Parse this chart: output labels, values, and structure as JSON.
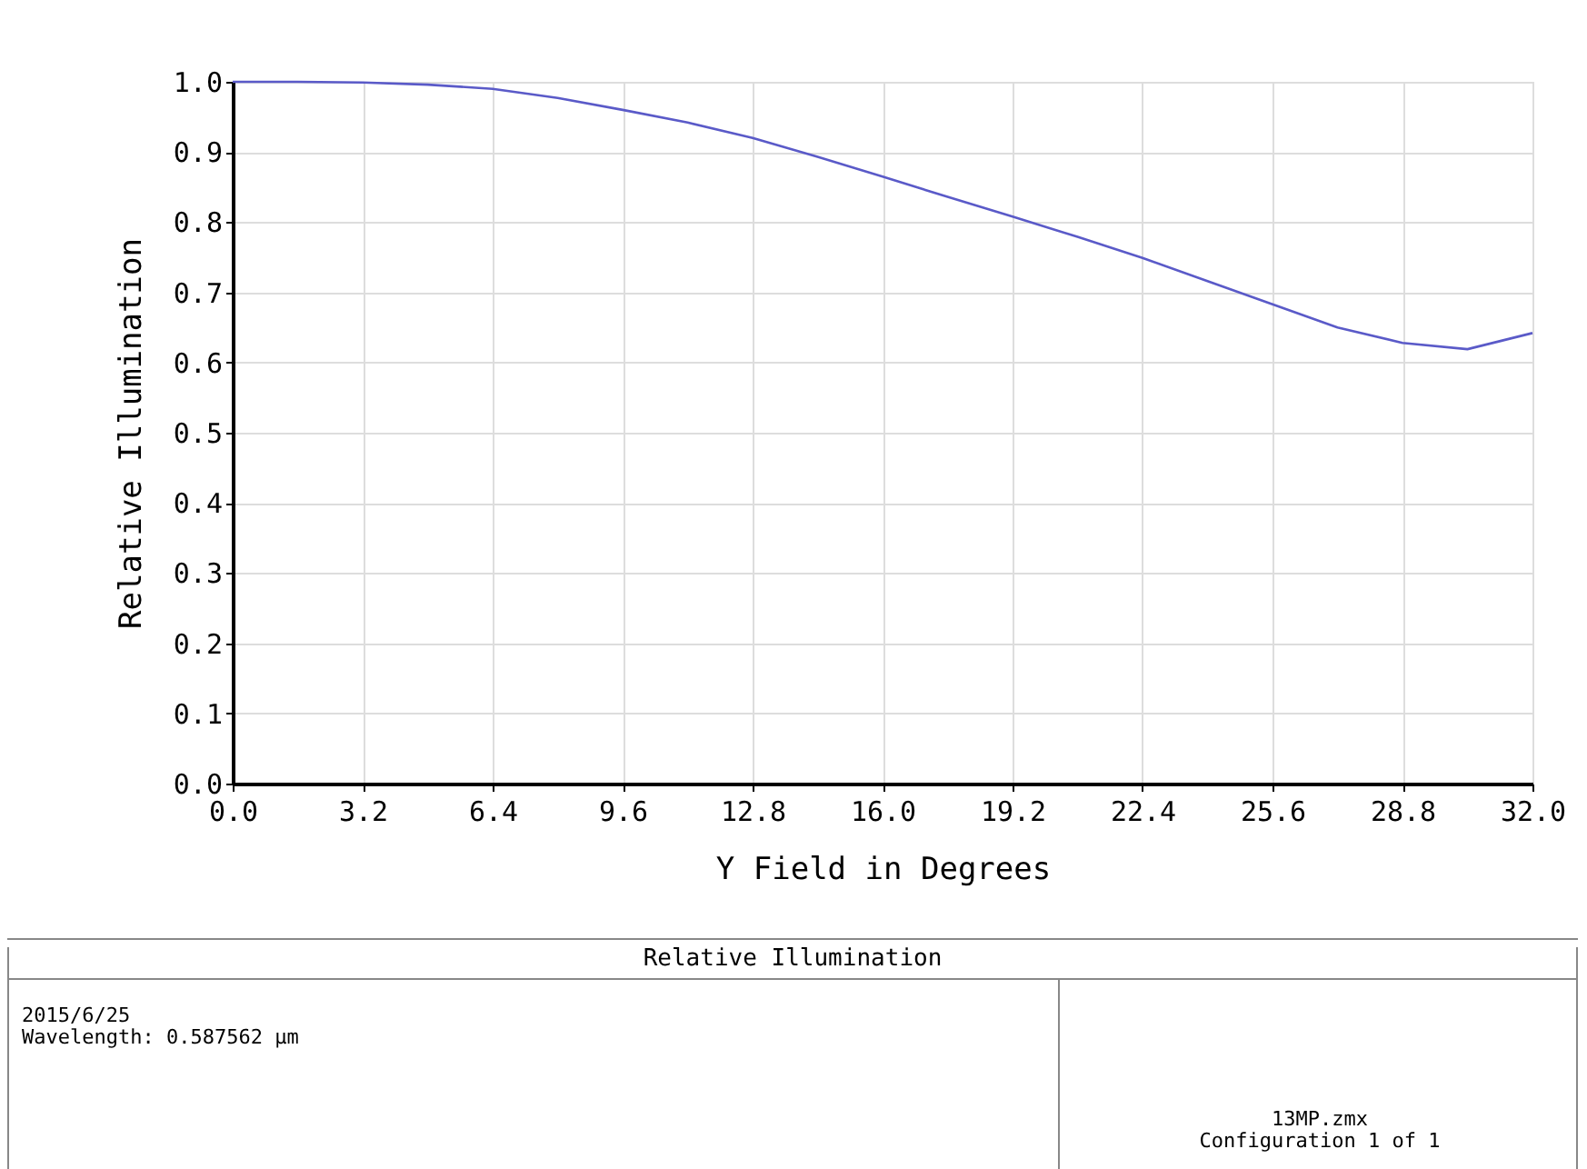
{
  "chart_data": {
    "type": "line",
    "title": "Relative Illumination",
    "xlabel": "Y Field in Degrees",
    "ylabel": "Relative Illumination",
    "x": [
      0,
      1.6,
      3.2,
      4.8,
      6.4,
      8.0,
      9.6,
      11.2,
      12.8,
      14.4,
      16.0,
      17.6,
      19.2,
      20.8,
      22.4,
      24.0,
      25.6,
      27.2,
      28.8,
      30.4,
      32.0
    ],
    "series": [
      {
        "color": "#5a5ac8",
        "values": [
          1.0,
          1.0,
          0.999,
          0.996,
          0.99,
          0.977,
          0.96,
          0.942,
          0.92,
          0.893,
          0.865,
          0.836,
          0.808,
          0.779,
          0.749,
          0.716,
          0.683,
          0.65,
          0.628,
          0.619,
          0.642
        ]
      }
    ],
    "xlim": [
      0,
      32
    ],
    "xticks": [
      {
        "value": 0,
        "label": "0.0"
      },
      {
        "value": 3.2,
        "label": "3.2"
      },
      {
        "value": 6.4,
        "label": "6.4"
      },
      {
        "value": 9.6,
        "label": "9.6"
      },
      {
        "value": 12.8,
        "label": "12.8"
      },
      {
        "value": 16,
        "label": "16.0"
      },
      {
        "value": 19.2,
        "label": "19.2"
      },
      {
        "value": 22.4,
        "label": "22.4"
      },
      {
        "value": 25.6,
        "label": "25.6"
      },
      {
        "value": 28.8,
        "label": "28.8"
      },
      {
        "value": 32,
        "label": "32.0"
      }
    ],
    "ylim": [
      0,
      1
    ],
    "yticks": [
      {
        "value": 0,
        "label": "0.0"
      },
      {
        "value": 0.1,
        "label": "0.1"
      },
      {
        "value": 0.2,
        "label": "0.2"
      },
      {
        "value": 0.3,
        "label": "0.3"
      },
      {
        "value": 0.4,
        "label": "0.4"
      },
      {
        "value": 0.5,
        "label": "0.5"
      },
      {
        "value": 0.6,
        "label": "0.6"
      },
      {
        "value": 0.7,
        "label": "0.7"
      },
      {
        "value": 0.8,
        "label": "0.8"
      },
      {
        "value": 0.9,
        "label": "0.9"
      },
      {
        "value": 1,
        "label": "1.0"
      }
    ],
    "grid": true,
    "marker": "none",
    "line_style": "solid",
    "annotations": [
      "2015/6/25",
      "Wavelength: 0.587562 µm",
      "13MP.zmx",
      "Configuration 1 of 1"
    ]
  }
}
